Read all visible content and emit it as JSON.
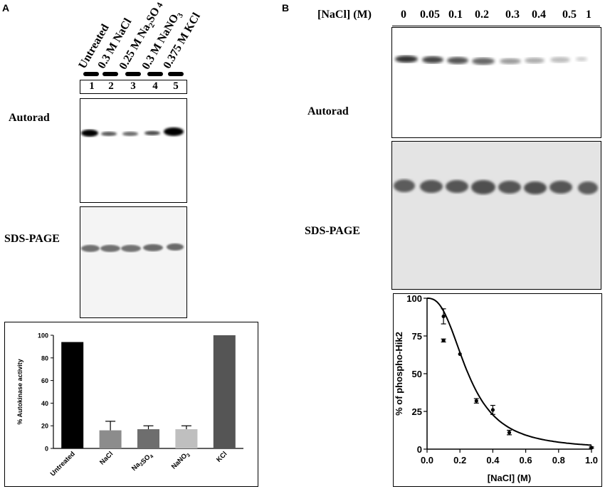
{
  "panel_a": {
    "letter": "A",
    "lane_labels": [
      "Untreated",
      "0.3 M NaCl",
      "0.25 M Na2SO4",
      "0.3 M NaNO3",
      "0.375 M KCl"
    ],
    "lane_numbers": [
      "1",
      "2",
      "3",
      "4",
      "5"
    ],
    "autorad_label": "Autorad",
    "sds_label": "SDS-PAGE"
  },
  "panel_b": {
    "letter": "B",
    "nacl_header": "[NaCl] (M)",
    "concentrations": [
      "0",
      "0.05",
      "0.1",
      "0.2",
      "0.3",
      "0.4",
      "0.5",
      "1"
    ],
    "autorad_label": "Autorad",
    "sds_label": "SDS-PAGE"
  },
  "chart_data": [
    {
      "type": "bar",
      "categories": [
        "Untreated",
        "NaCl",
        "Na2SO4",
        "NaNO3",
        "KCl"
      ],
      "values": [
        94,
        16,
        17,
        17,
        100
      ],
      "errors": [
        0,
        8,
        3,
        3,
        0
      ],
      "colors": [
        "#000000",
        "#8c8c8c",
        "#6e6e6e",
        "#bfbfbf",
        "#555555"
      ],
      "ylabel": "% Autokinase activity",
      "ylim": [
        0,
        100
      ],
      "yticks": [
        "0",
        "20",
        "40",
        "60",
        "80",
        "100"
      ]
    },
    {
      "type": "scatter",
      "x": [
        0.1,
        0.1,
        0.2,
        0.3,
        0.4,
        0.5,
        1.0
      ],
      "y": [
        88,
        72,
        63,
        32,
        26,
        11,
        1
      ],
      "errors": [
        5,
        1,
        0,
        1.5,
        3,
        1.5,
        0.5
      ],
      "fit_curve": "sigmoidal decay",
      "xlabel": "[NaCl] (M)",
      "ylabel": "% of phospho-Hik2",
      "xlim": [
        0.0,
        1.0
      ],
      "ylim": [
        0,
        100
      ],
      "xticks": [
        "0.0",
        "0.2",
        "0.4",
        "0.6",
        "0.8",
        "1.0"
      ],
      "yticks": [
        "0",
        "25",
        "50",
        "75",
        "100"
      ]
    }
  ]
}
